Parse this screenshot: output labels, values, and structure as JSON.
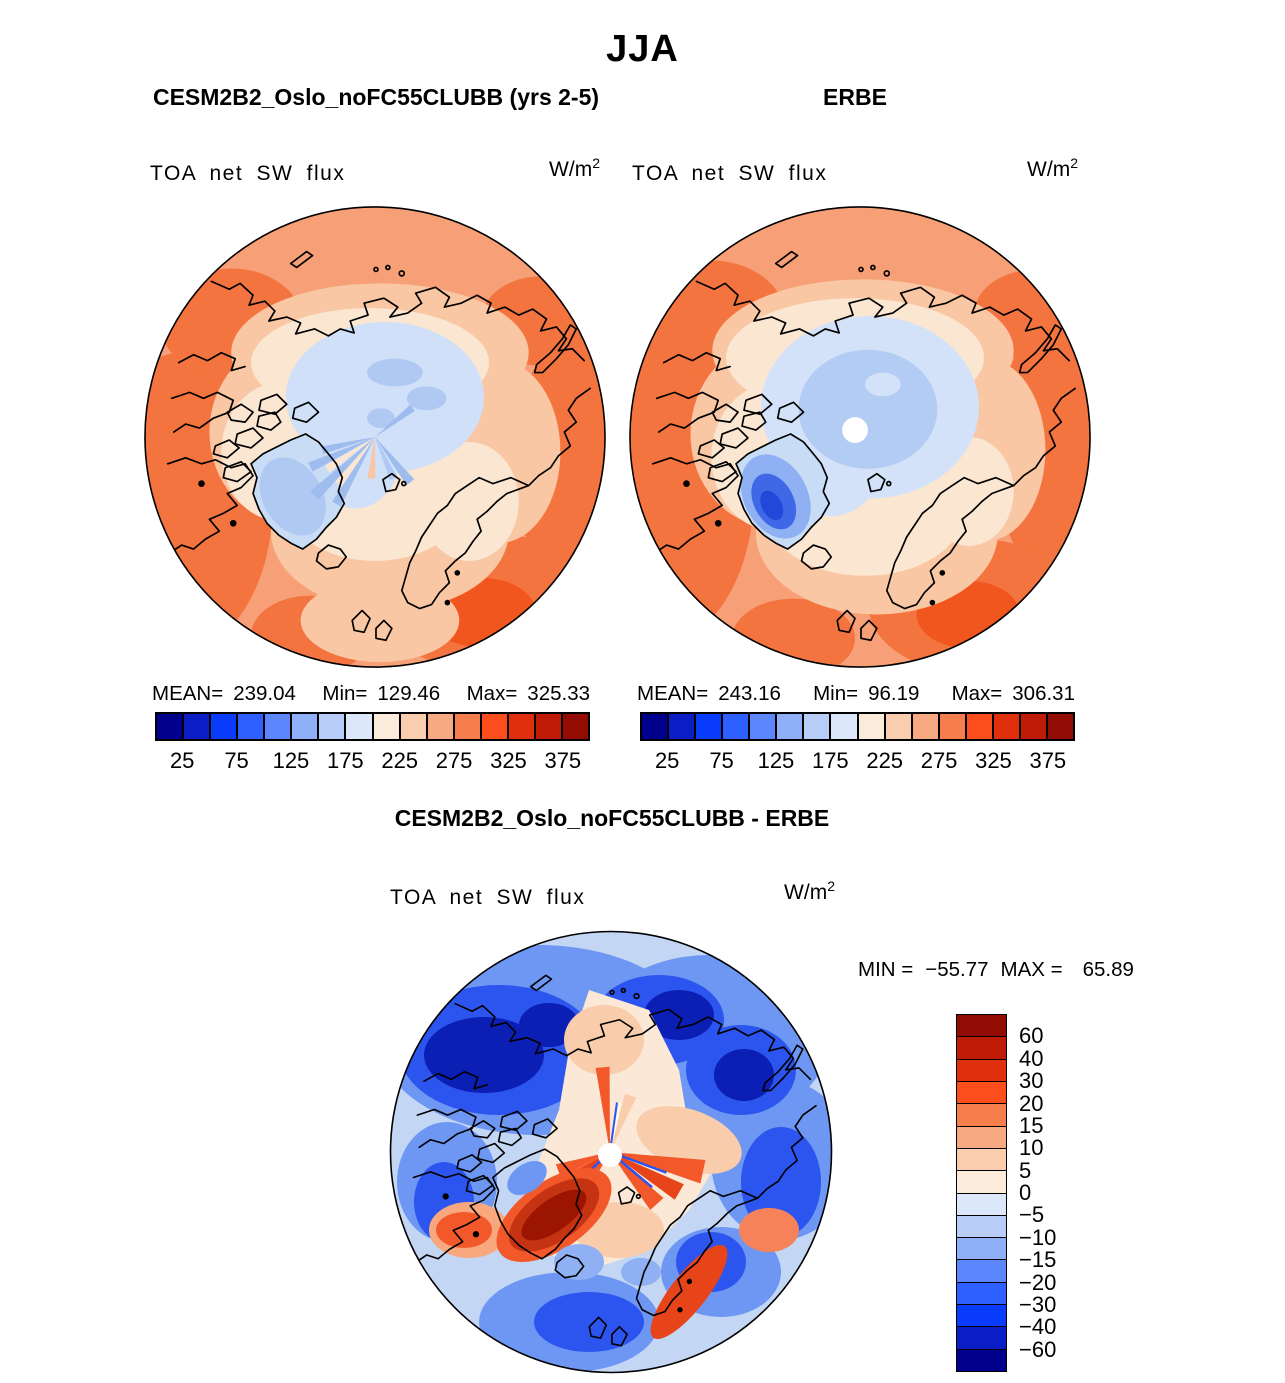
{
  "title": "JJA",
  "panels": [
    {
      "title": "CESM2B2_Oslo_noFC55CLUBB (yrs 2-5)",
      "field_label": "TOA net SW flux",
      "units": "W/m",
      "units_exp": "2",
      "stats": {
        "mean_label": "MEAN=",
        "mean": "239.04",
        "min_label": "Min=",
        "min": "129.46",
        "max_label": "Max=",
        "max": "325.33"
      }
    },
    {
      "title": "ERBE",
      "field_label": "TOA net SW flux",
      "units": "W/m",
      "units_exp": "2",
      "stats": {
        "mean_label": "MEAN=",
        "mean": "243.16",
        "min_label": "Min=",
        "min": "96.19",
        "max_label": "Max=",
        "max": "306.31"
      }
    }
  ],
  "diff_panel": {
    "title": "CESM2B2_Oslo_noFC55CLUBB - ERBE",
    "field_label": "TOA net SW flux",
    "units": "W/m",
    "units_exp": "2",
    "min_label": "MIN =",
    "min": "−55.77",
    "max_label": "MAX =",
    "max": "65.89"
  },
  "colorbar": {
    "ticks": [
      "25",
      "75",
      "125",
      "175",
      "225",
      "275",
      "325",
      "375"
    ],
    "palette": [
      "#00008C",
      "#0B1EC6",
      "#0A3DFB",
      "#2E5FFF",
      "#5C86FC",
      "#8FAFF9",
      "#B9CDF9",
      "#DCE8FA",
      "#FBEBDB",
      "#FACDAE",
      "#F7A982",
      "#F67E4D",
      "#FB4E1C",
      "#E02F0D",
      "#BF1B06",
      "#920C04"
    ]
  },
  "diff_colorbar": {
    "ticks": [
      "60",
      "40",
      "30",
      "20",
      "15",
      "10",
      "5",
      "0",
      "−5",
      "−10",
      "−15",
      "−20",
      "−30",
      "−40",
      "−60"
    ],
    "palette": [
      "#920C04",
      "#BF1B06",
      "#E02F0D",
      "#FB4E1C",
      "#F67E4D",
      "#F7A982",
      "#FACDAE",
      "#FBEBDB",
      "#DCE8FA",
      "#B9CDF9",
      "#8FAFF9",
      "#5C86FC",
      "#2E5FFF",
      "#0A3DFB",
      "#0B1EC6",
      "#00008C"
    ]
  },
  "chart_data": [
    {
      "type": "heatmap",
      "projection": "north-polar-stereographic",
      "season": "JJA",
      "title": "CESM2B2_Oslo_noFC55CLUBB (yrs 2-5)",
      "variable": "TOA net SW flux",
      "units": "W/m2",
      "mean": 239.04,
      "min": 129.46,
      "max": 325.33,
      "contour_levels": [
        25,
        50,
        75,
        100,
        125,
        150,
        175,
        200,
        225,
        250,
        275,
        300,
        325,
        350,
        375
      ],
      "labeled_levels": [
        25,
        75,
        125,
        175,
        225,
        275,
        325,
        375
      ],
      "legend_position": "below"
    },
    {
      "type": "heatmap",
      "projection": "north-polar-stereographic",
      "season": "JJA",
      "title": "ERBE",
      "variable": "TOA net SW flux",
      "units": "W/m2",
      "mean": 243.16,
      "min": 96.19,
      "max": 306.31,
      "contour_levels": [
        25,
        50,
        75,
        100,
        125,
        150,
        175,
        200,
        225,
        250,
        275,
        300,
        325,
        350,
        375
      ],
      "labeled_levels": [
        25,
        75,
        125,
        175,
        225,
        275,
        325,
        375
      ],
      "legend_position": "below"
    },
    {
      "type": "heatmap",
      "projection": "north-polar-stereographic",
      "season": "JJA",
      "title": "CESM2B2_Oslo_noFC55CLUBB - ERBE",
      "variable": "TOA net SW flux difference",
      "units": "W/m2",
      "min": -55.77,
      "max": 65.89,
      "contour_levels": [
        -60,
        -40,
        -30,
        -20,
        -15,
        -10,
        -5,
        0,
        5,
        10,
        15,
        20,
        30,
        40,
        60
      ],
      "legend_position": "right"
    }
  ]
}
